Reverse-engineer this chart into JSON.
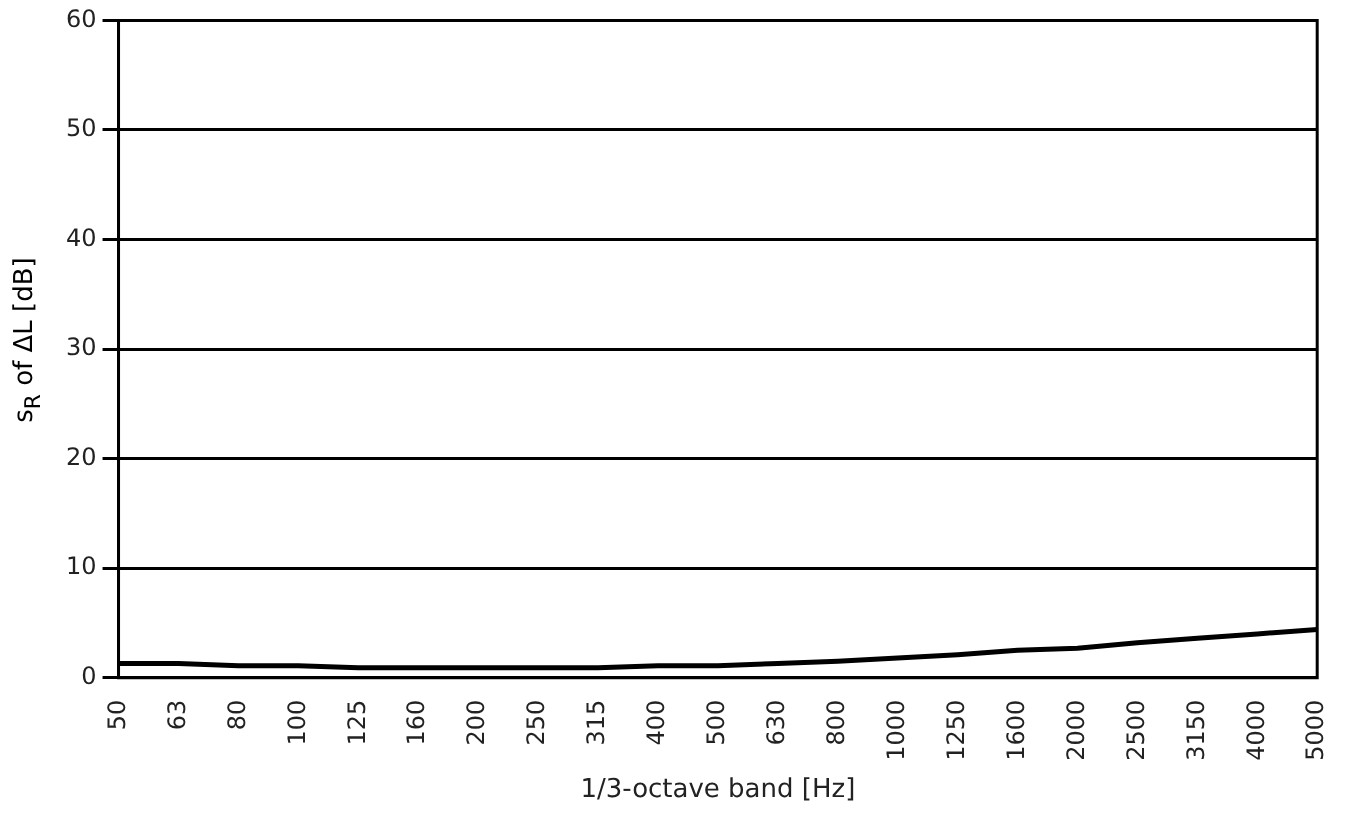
{
  "chart_data": {
    "type": "line",
    "xlabel": "1/3-octave band [Hz]",
    "ylabel": "s$_{R}$ of ΔL [dB]",
    "categories": [
      "50",
      "63",
      "80",
      "100",
      "125",
      "160",
      "200",
      "250",
      "315",
      "400",
      "500",
      "630",
      "800",
      "1000",
      "1250",
      "1600",
      "2000",
      "2500",
      "3150",
      "4000",
      "5000"
    ],
    "series": [
      {
        "color": "#000000",
        "values": [
          1.3,
          1.3,
          1.1,
          1.1,
          0.9,
          0.9,
          0.9,
          0.9,
          0.9,
          1.1,
          1.1,
          1.3,
          1.5,
          1.8,
          2.1,
          2.5,
          2.7,
          3.2,
          3.6,
          4.0,
          4.4
        ]
      }
    ],
    "ylim": [
      0,
      60
    ],
    "yticks": [
      0,
      10,
      20,
      30,
      40,
      50,
      60
    ],
    "grid": "y",
    "legend": false,
    "marker": "none",
    "line_style": "solid"
  }
}
